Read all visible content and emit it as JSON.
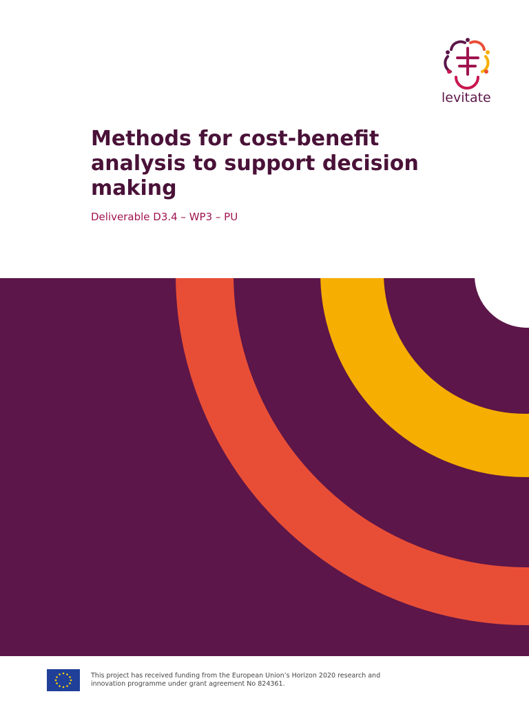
{
  "logo": {
    "name": "levitate"
  },
  "header": {
    "title": "Methods for cost-benefit analysis to support decision making",
    "subtitle": "Deliverable D3.4 – WP3 – PU"
  },
  "footer": {
    "funding_line_1": "This project has received funding from the European Union’s Horizon 2020 research and",
    "funding_line_2": "innovation programme under grant agreement No 824361."
  }
}
